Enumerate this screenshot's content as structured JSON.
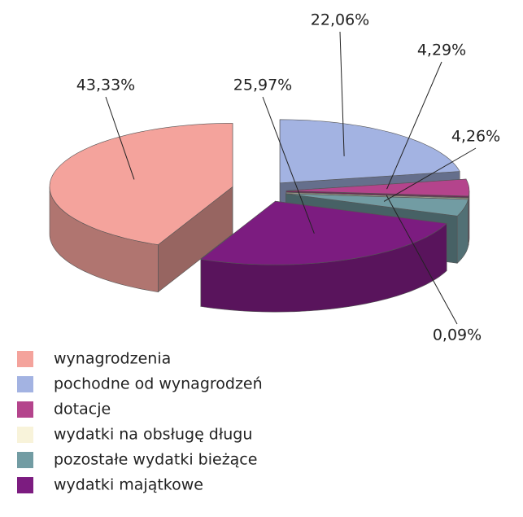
{
  "chart_data": {
    "type": "pie3d",
    "categories": [
      "wynagrodzenia",
      "pochodne od wynagrodzeń",
      "dotacje",
      "wydatki na obsługę długu",
      "pozostałe wydatki bieżące",
      "wydatki majątkowe"
    ],
    "values": [
      43.33,
      22.06,
      4.29,
      0.09,
      4.26,
      25.97
    ],
    "value_labels": [
      "43,33%",
      "22,06%",
      "4,29%",
      "0,09%",
      "4,26%",
      "25,97%"
    ],
    "colors": [
      "#f4a39c",
      "#a3b3e2",
      "#b4448c",
      "#f8f3da",
      "#729ca3",
      "#7c1c80"
    ]
  }
}
